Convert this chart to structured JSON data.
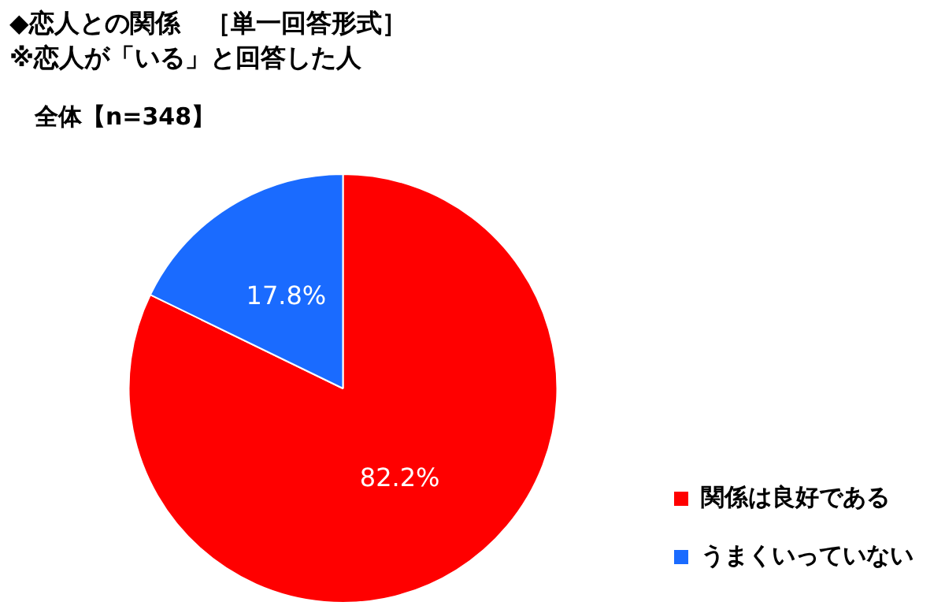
{
  "chart_data": {
    "type": "pie",
    "title": "◆恋人との関係　［単一回答形式］",
    "subtitle": "※恋人が「いる」と回答した人",
    "annotations": [
      "全体【n=348】"
    ],
    "categories": [
      "関係は良好である",
      "うまくいっていない"
    ],
    "values": [
      82.2,
      17.8
    ],
    "colors": [
      "#ff0000",
      "#1a6bff"
    ],
    "value_labels": [
      "82.2%",
      "17.8%"
    ],
    "legend": "bottom right"
  }
}
